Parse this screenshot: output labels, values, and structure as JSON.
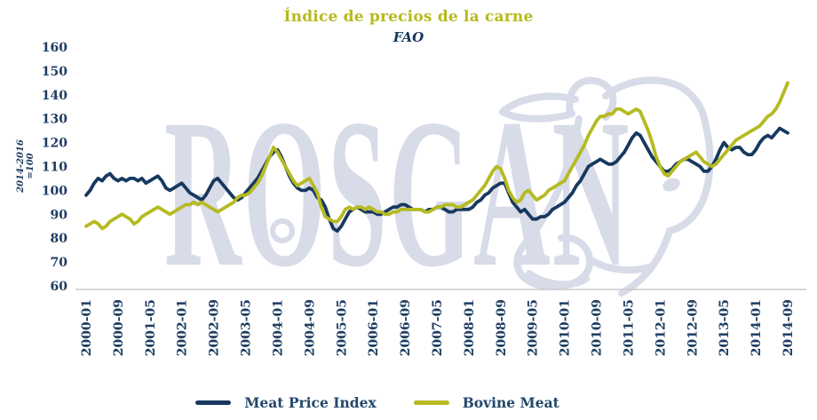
{
  "chart_data": {
    "type": "line",
    "title": "Índice de precios de la carne",
    "subtitle": "FAO",
    "y_axis_label": "2014-2016 =100",
    "grid": "baseline-only",
    "legend_position": "bottom-center",
    "y_axis": {
      "min": 60,
      "max": 160,
      "ticks": [
        160,
        150,
        140,
        130,
        120,
        110,
        100,
        90,
        80,
        70,
        60
      ]
    },
    "x_axis": {
      "start": "2000-01",
      "end": "2014-09",
      "frequency": "monthly",
      "tick_every_months": 8,
      "tick_labels": [
        "2000-01",
        "2000-09",
        "2001-05",
        "2002-01",
        "2002-09",
        "2003-05",
        "2004-01",
        "2004-09",
        "2005-05",
        "2006-01",
        "2006-09",
        "2007-05",
        "2008-01",
        "2008-09",
        "2009-05",
        "2010-01",
        "2010-09",
        "2011-05",
        "2012-01",
        "2012-09",
        "2013-05",
        "2014-01",
        "2014-09"
      ]
    },
    "series": [
      {
        "name": "Meat Price Index",
        "color": "#17395f",
        "values": [
          98,
          100,
          103,
          105,
          104,
          106,
          107,
          105,
          104,
          105,
          104,
          105,
          105,
          104,
          105,
          103,
          104,
          105,
          106,
          104,
          101,
          100,
          101,
          102,
          103,
          101,
          99,
          98,
          97,
          96,
          98,
          101,
          104,
          105,
          103,
          101,
          99,
          97,
          96,
          97,
          99,
          101,
          103,
          105,
          108,
          111,
          114,
          116,
          117,
          114,
          110,
          106,
          103,
          101,
          100,
          100,
          101,
          100,
          97,
          96,
          93,
          88,
          84,
          83,
          85,
          88,
          91,
          92,
          93,
          92,
          91,
          91,
          91,
          90,
          90,
          91,
          92,
          93,
          93,
          94,
          94,
          93,
          92,
          92,
          92,
          91,
          92,
          92,
          93,
          93,
          92,
          91,
          91,
          92,
          92,
          92,
          92,
          93,
          95,
          96,
          98,
          99,
          101,
          102,
          103,
          103,
          99,
          95,
          93,
          91,
          92,
          90,
          88,
          88,
          89,
          89,
          90,
          92,
          93,
          94,
          95,
          97,
          99,
          102,
          104,
          107,
          110,
          111,
          112,
          113,
          112,
          111,
          111,
          112,
          114,
          116,
          119,
          122,
          124,
          123,
          120,
          117,
          114,
          112,
          110,
          108,
          108,
          109,
          111,
          112,
          113,
          113,
          112,
          111,
          110,
          108,
          108,
          110,
          113,
          117,
          120,
          118,
          117,
          118,
          118,
          116,
          115,
          115,
          117,
          120,
          122,
          123,
          122,
          124,
          126,
          125,
          124
        ]
      },
      {
        "name": "Bovine Meat",
        "color": "#b5ba21",
        "values": [
          85,
          86,
          87,
          86,
          84,
          85,
          87,
          88,
          89,
          90,
          89,
          88,
          86,
          87,
          89,
          90,
          91,
          92,
          93,
          92,
          91,
          90,
          91,
          92,
          93,
          94,
          94,
          95,
          94,
          95,
          94,
          93,
          92,
          91,
          92,
          93,
          94,
          95,
          97,
          98,
          98,
          99,
          101,
          103,
          106,
          110,
          114,
          118,
          116,
          113,
          110,
          107,
          104,
          102,
          103,
          104,
          105,
          102,
          99,
          93,
          89,
          88,
          87,
          87,
          89,
          92,
          93,
          92,
          93,
          93,
          92,
          93,
          92,
          91,
          91,
          90,
          90,
          91,
          91,
          92,
          92,
          92,
          92,
          92,
          92,
          91,
          91,
          92,
          93,
          93,
          94,
          94,
          94,
          93,
          93,
          94,
          95,
          96,
          98,
          100,
          102,
          105,
          108,
          110,
          109,
          105,
          100,
          97,
          95,
          96,
          99,
          100,
          98,
          96,
          97,
          98,
          100,
          101,
          102,
          103,
          104,
          107,
          110,
          113,
          116,
          119,
          123,
          126,
          129,
          131,
          131,
          132,
          132,
          134,
          134,
          133,
          132,
          133,
          134,
          133,
          129,
          125,
          120,
          114,
          110,
          107,
          106,
          108,
          110,
          112,
          113,
          114,
          115,
          116,
          114,
          112,
          111,
          110,
          111,
          113,
          115,
          117,
          119,
          121,
          122,
          123,
          124,
          125,
          126,
          127,
          129,
          131,
          132,
          134,
          137,
          141,
          145
        ]
      }
    ]
  },
  "watermark": {
    "text": "ROSGAN",
    "icon": "bull-head-outline",
    "color": "#d8dbe8"
  },
  "colors": {
    "title": "#b6ba1e",
    "subtitle": "#17365c",
    "axis_text": "#1e3d61",
    "baseline": "#c8cacd",
    "legend_text": "#24476b",
    "background": "#ffffff"
  }
}
